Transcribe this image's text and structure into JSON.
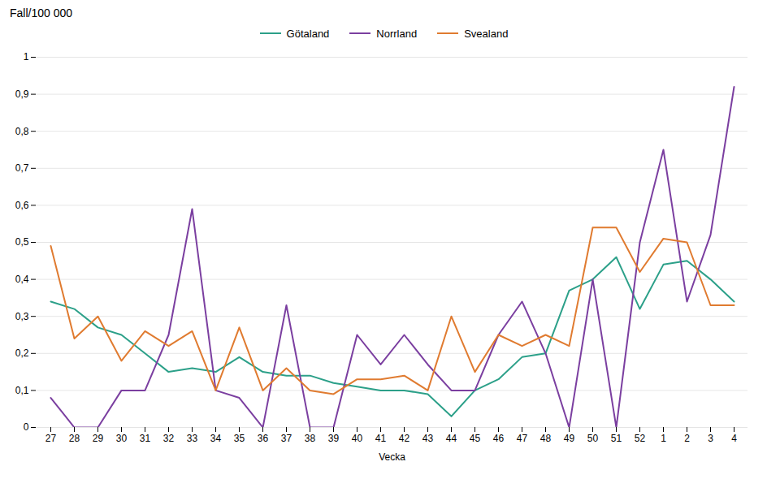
{
  "chart_data": {
    "type": "line",
    "title": "Fall/100 000",
    "x_label": "Vecka",
    "categories": [
      "27",
      "28",
      "29",
      "30",
      "31",
      "32",
      "33",
      "34",
      "35",
      "36",
      "37",
      "38",
      "39",
      "40",
      "41",
      "42",
      "43",
      "44",
      "45",
      "46",
      "47",
      "48",
      "49",
      "50",
      "51",
      "52",
      "1",
      "2",
      "3",
      "4"
    ],
    "series": [
      {
        "name": "Götaland",
        "color": "#2CA089",
        "values": [
          0.34,
          0.32,
          0.27,
          0.25,
          0.2,
          0.15,
          0.16,
          0.15,
          0.19,
          0.15,
          0.14,
          0.14,
          0.12,
          0.11,
          0.1,
          0.1,
          0.09,
          0.03,
          0.1,
          0.13,
          0.19,
          0.2,
          0.37,
          0.4,
          0.46,
          0.32,
          0.44,
          0.45,
          0.4,
          0.34
        ]
      },
      {
        "name": "Norrland",
        "color": "#7B3FA0",
        "values": [
          0.08,
          0.0,
          0.0,
          0.1,
          0.1,
          0.25,
          0.59,
          0.1,
          0.08,
          0.0,
          0.33,
          0.0,
          0.0,
          0.25,
          0.17,
          0.25,
          0.17,
          0.1,
          0.1,
          0.25,
          0.34,
          0.2,
          0.0,
          0.4,
          0.0,
          0.5,
          0.75,
          0.34,
          0.52,
          0.92
        ]
      },
      {
        "name": "Svealand",
        "color": "#E07B30",
        "values": [
          0.49,
          0.24,
          0.3,
          0.18,
          0.26,
          0.22,
          0.26,
          0.1,
          0.27,
          0.1,
          0.16,
          0.1,
          0.09,
          0.13,
          0.13,
          0.14,
          0.1,
          0.3,
          0.15,
          0.25,
          0.22,
          0.25,
          0.22,
          0.54,
          0.54,
          0.42,
          0.51,
          0.5,
          0.33,
          0.33
        ]
      }
    ],
    "ylim": [
      0,
      1.0
    ],
    "yticks": [
      0,
      {
        "value": 0.1,
        "label": "0,1"
      },
      {
        "value": 0.2,
        "label": "0,2"
      },
      {
        "value": 0.3,
        "label": "0,3"
      },
      {
        "value": 0.4,
        "label": "0,4"
      },
      {
        "value": 0.5,
        "label": "0,5"
      },
      {
        "value": 0.6,
        "label": "0,6"
      },
      {
        "value": 0.7,
        "label": "0,7"
      },
      {
        "value": 0.8,
        "label": "0,8"
      },
      {
        "value": 0.9,
        "label": "0,9"
      },
      1
    ],
    "grid": true,
    "legend": "top"
  }
}
